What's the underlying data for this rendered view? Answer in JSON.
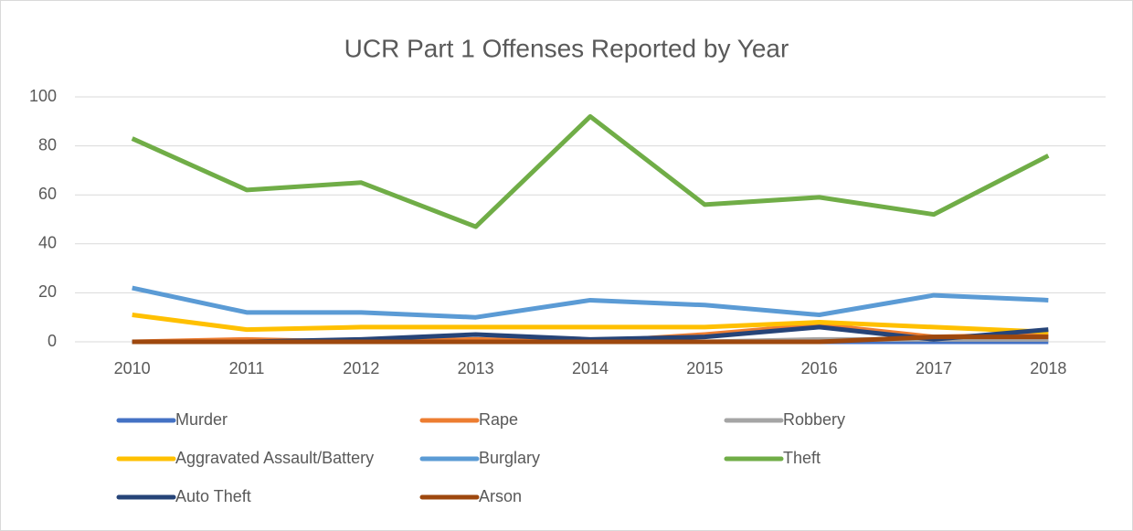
{
  "chart_data": {
    "type": "line",
    "title": "UCR Part 1 Offenses Reported by Year",
    "categories": [
      "2010",
      "2011",
      "2012",
      "2013",
      "2014",
      "2015",
      "2016",
      "2017",
      "2018"
    ],
    "ylim": [
      0,
      100
    ],
    "yticks": [
      0,
      20,
      40,
      60,
      80,
      100
    ],
    "grid": true,
    "legend": "bottom",
    "series": [
      {
        "name": "Murder",
        "color": "#4472c4",
        "values": [
          0,
          0,
          0,
          0,
          0,
          0,
          0,
          0,
          0
        ]
      },
      {
        "name": "Rape",
        "color": "#ed7d31",
        "values": [
          0,
          1,
          0,
          1,
          0,
          3,
          7,
          2,
          3
        ]
      },
      {
        "name": "Robbery",
        "color": "#a5a5a5",
        "values": [
          0,
          0,
          0,
          0,
          0,
          0,
          1,
          1,
          1
        ]
      },
      {
        "name": "Aggravated Assault/Battery",
        "color": "#ffc000",
        "values": [
          11,
          5,
          6,
          6,
          6,
          6,
          8,
          6,
          4
        ]
      },
      {
        "name": "Burglary",
        "color": "#5b9bd5",
        "values": [
          22,
          12,
          12,
          10,
          17,
          15,
          11,
          19,
          17
        ]
      },
      {
        "name": "Theft",
        "color": "#70ad47",
        "values": [
          83,
          62,
          65,
          47,
          92,
          56,
          59,
          52,
          76
        ]
      },
      {
        "name": "Auto Theft",
        "color": "#264478",
        "values": [
          0,
          0,
          1,
          3,
          1,
          2,
          6,
          1,
          5
        ]
      },
      {
        "name": "Arson",
        "color": "#9e480e",
        "values": [
          0,
          0,
          0,
          0,
          0,
          0,
          0,
          2,
          2
        ]
      }
    ]
  }
}
